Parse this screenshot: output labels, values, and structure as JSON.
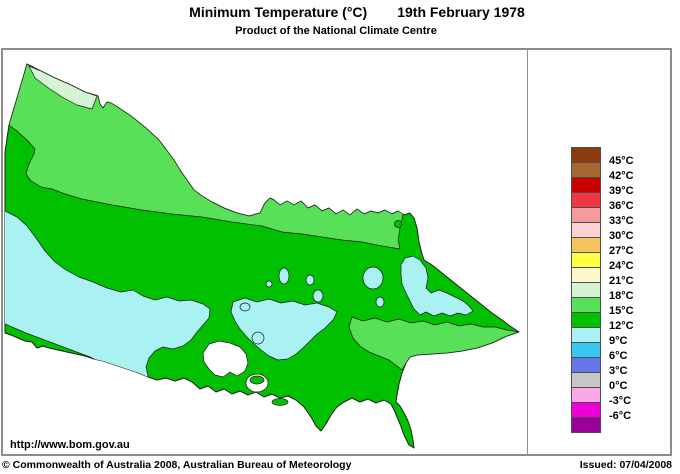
{
  "header": {
    "title": "Minimum Temperature (°C)",
    "date": "19th February 1978",
    "subtitle": "Product of the National Climate Centre"
  },
  "footer": {
    "url": "http://www.bom.gov.au",
    "copyright": "© Commonwealth of Australia 2008, Australian Bureau of Meteorology",
    "issued": "Issued: 07/04/2008"
  },
  "legend": {
    "unit": "°C",
    "entries": [
      {
        "color": "#8C3A10",
        "label": "45°C"
      },
      {
        "color": "#A4682F",
        "label": "42°C"
      },
      {
        "color": "#C80000",
        "label": "39°C"
      },
      {
        "color": "#F03844",
        "label": "36°C"
      },
      {
        "color": "#F49C9C",
        "label": "33°C"
      },
      {
        "color": "#FBD2D2",
        "label": "30°C"
      },
      {
        "color": "#F6C35C",
        "label": "27°C"
      },
      {
        "color": "#FFFF42",
        "label": "24°C"
      },
      {
        "color": "#FCFACD",
        "label": "21°C"
      },
      {
        "color": "#D4F4D4",
        "label": "18°C"
      },
      {
        "color": "#58E058",
        "label": "15°C"
      },
      {
        "color": "#00C000",
        "label": "12°C"
      },
      {
        "color": "#AAF2F2",
        "label": "9°C"
      },
      {
        "color": "#38C8F0",
        "label": "6°C"
      },
      {
        "color": "#6676E8",
        "label": "3°C"
      },
      {
        "color": "#C6C6C6",
        "label": "0°C"
      },
      {
        "color": "#F9A8E8",
        "label": "-3°C"
      },
      {
        "color": "#F000D8",
        "label": "-6°C"
      },
      {
        "color": "#980098",
        "label": null
      }
    ]
  },
  "map": {
    "colors": {
      "green_12_15": "#00C000",
      "light_green_15_18": "#58E058",
      "pale_green_18_21": "#D4F4D4",
      "pale_cyan_9_12": "#AAF2F2",
      "water": "#FFFFFF"
    },
    "regions_shown": [
      {
        "zone": "18-21°C",
        "where": "far north-west corner"
      },
      {
        "zone": "15-18°C",
        "where": "northern band and eastern Gippsland wedge"
      },
      {
        "zone": "12-15°C",
        "where": "most of central and southern Victoria"
      },
      {
        "zone": "9-12°C",
        "where": "west-central district, central highlands and north-east alps"
      }
    ]
  }
}
